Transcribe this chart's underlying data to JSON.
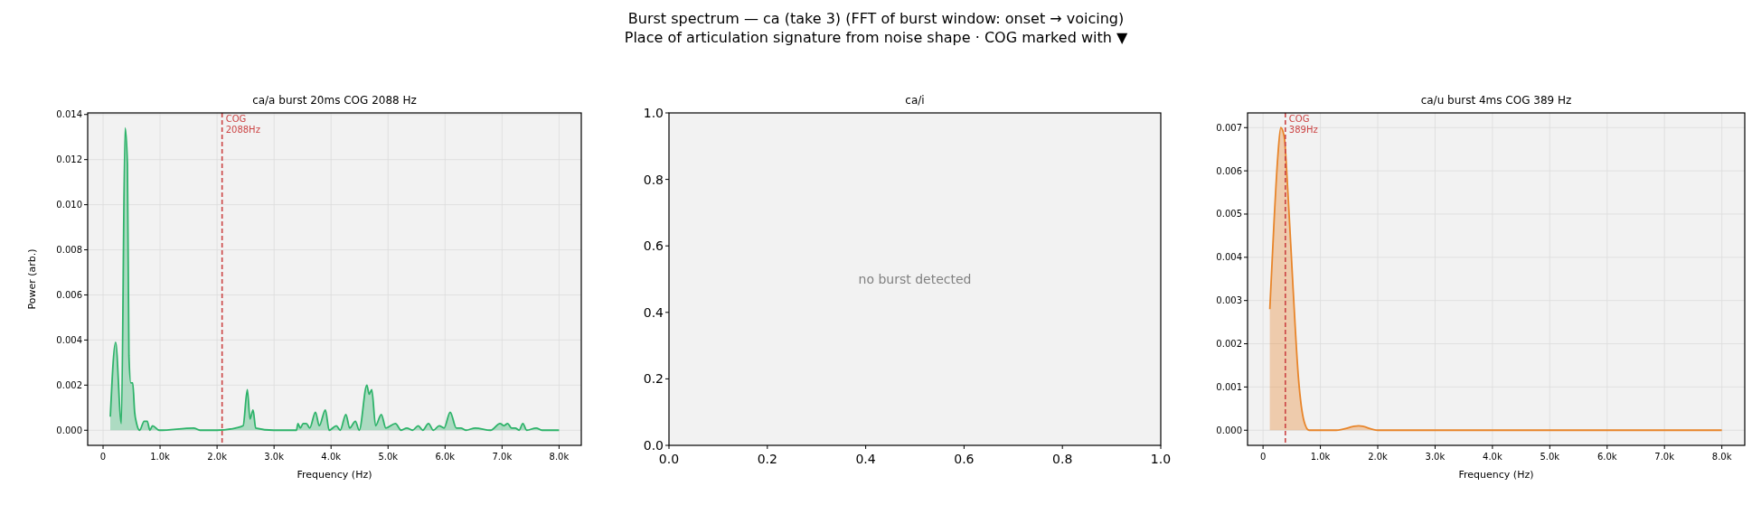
{
  "chart_data": [
    {
      "type": "other",
      "title": "Burst spectrum — ca (take 3)  (FFT of burst window: onset → voicing)",
      "subtitle": "Place of articulation signature from noise shape · COG marked with ▼"
    },
    {
      "type": "area",
      "title": "ca/a  burst 20ms  COG 2088 Hz",
      "xlabel": "Frequency (Hz)",
      "ylabel": "Power (arb.)",
      "grid": true,
      "xlim": [
        -270,
        8390
      ],
      "ylim": [
        -0.00067,
        0.01407
      ],
      "xticks": [
        0,
        {
          "value": 1000,
          "label": "1.0k"
        },
        {
          "value": 2000,
          "label": "2.0k"
        },
        {
          "value": 3000,
          "label": "3.0k"
        },
        {
          "value": 4000,
          "label": "4.0k"
        },
        {
          "value": 5000,
          "label": "5.0k"
        },
        {
          "value": 6000,
          "label": "6.0k"
        },
        {
          "value": 7000,
          "label": "7.0k"
        },
        {
          "value": 8000,
          "label": "8.0k"
        }
      ],
      "yticks": [
        {
          "value": 0,
          "label": "0.000"
        },
        {
          "value": 0.002,
          "label": "0.002"
        },
        {
          "value": 0.004,
          "label": "0.004"
        },
        {
          "value": 0.006,
          "label": "0.006"
        },
        {
          "value": 0.008,
          "label": "0.008"
        },
        {
          "value": 0.01,
          "label": "0.010"
        },
        {
          "value": 0.012,
          "label": "0.012"
        },
        {
          "value": 0.014,
          "label": "0.014"
        }
      ],
      "ref_lines": [
        {
          "axis": "x",
          "value": 2088,
          "label": "COG\n2088Hz",
          "color": "#cc4444",
          "line_style": "dashed"
        }
      ],
      "series": [
        {
          "color": "#2eb36a",
          "x": [
            127,
            220,
            320,
            387,
            427,
            454,
            487,
            520,
            554,
            588,
            641,
            721,
            775,
            821,
            868,
            988,
            1590,
            1700,
            2000,
            2324,
            2457,
            2531,
            2578,
            2631,
            2678,
            2992,
            3392,
            3419,
            3459,
            3512,
            3566,
            3626,
            3726,
            3793,
            3900,
            3967,
            4093,
            4160,
            4260,
            4327,
            4427,
            4494,
            4628,
            4668,
            4714,
            4781,
            4881,
            4961,
            5129,
            5229,
            5329,
            5429,
            5529,
            5609,
            5709,
            5796,
            5897,
            5983,
            6090,
            6197,
            6277,
            6364,
            6531,
            6798,
            6965,
            7032,
            7098,
            7165,
            7232,
            7299,
            7365,
            7432,
            7599,
            7699,
            8000
          ],
          "values": [
            0.0006,
            0.0039,
            0.0003,
            0.0134,
            0.0118,
            0.0033,
            0.0021,
            0.0021,
            0.0008,
            0.0003,
            0,
            0.0004,
            0.0004,
            0,
            0.0002,
            0,
            0.0001,
            0,
            0,
            0.0001,
            0.0002,
            0.0018,
            0.0005,
            0.0009,
            0.0001,
            0,
            0,
            0.0003,
            0.0001,
            0.0003,
            0.0003,
            0.0001,
            0.0008,
            0.0002,
            0.0009,
            0,
            0.0002,
            0,
            0.0007,
            0.0001,
            0.0004,
            0,
            0.002,
            0.0016,
            0.0018,
            0.0002,
            0.0007,
            0.0001,
            0.0003,
            0,
            0.0001,
            0,
            0.0002,
            0,
            0.0003,
            0,
            0.0002,
            0.0001,
            0.0008,
            0.0001,
            0.0001,
            0,
            0.0001,
            0,
            0.0003,
            0.0002,
            0.0003,
            0.0001,
            0.0001,
            0,
            0.0003,
            0,
            0.0001,
            0,
            0
          ]
        }
      ]
    },
    {
      "type": "line",
      "title": "ca/i",
      "xlim": [
        0,
        1
      ],
      "ylim": [
        0,
        1
      ],
      "xticks": [
        {
          "value": 0,
          "label": "0.0"
        },
        {
          "value": 0.2,
          "label": "0.2"
        },
        {
          "value": 0.4,
          "label": "0.4"
        },
        {
          "value": 0.6,
          "label": "0.6"
        },
        {
          "value": 0.8,
          "label": "0.8"
        },
        {
          "value": 1,
          "label": "1.0"
        }
      ],
      "yticks": [
        {
          "value": 0,
          "label": "0.0"
        },
        {
          "value": 0.2,
          "label": "0.2"
        },
        {
          "value": 0.4,
          "label": "0.4"
        },
        {
          "value": 0.6,
          "label": "0.6"
        },
        {
          "value": 0.8,
          "label": "0.8"
        },
        {
          "value": 1,
          "label": "1.0"
        }
      ],
      "annotations": [
        "no burst detected"
      ]
    },
    {
      "type": "area",
      "title": "ca/u  burst 4ms  COG 389 Hz",
      "xlabel": "Frequency (Hz)",
      "grid": true,
      "xlim": [
        -270,
        8400
      ],
      "ylim": [
        -0.00035,
        0.00734
      ],
      "xticks": [
        0,
        {
          "value": 1000,
          "label": "1.0k"
        },
        {
          "value": 2000,
          "label": "2.0k"
        },
        {
          "value": 3000,
          "label": "3.0k"
        },
        {
          "value": 4000,
          "label": "4.0k"
        },
        {
          "value": 5000,
          "label": "5.0k"
        },
        {
          "value": 6000,
          "label": "6.0k"
        },
        {
          "value": 7000,
          "label": "7.0k"
        },
        {
          "value": 8000,
          "label": "8.0k"
        }
      ],
      "yticks": [
        {
          "value": 0,
          "label": "0.000"
        },
        {
          "value": 0.001,
          "label": "0.001"
        },
        {
          "value": 0.002,
          "label": "0.002"
        },
        {
          "value": 0.003,
          "label": "0.003"
        },
        {
          "value": 0.004,
          "label": "0.004"
        },
        {
          "value": 0.005,
          "label": "0.005"
        },
        {
          "value": 0.006,
          "label": "0.006"
        },
        {
          "value": 0.007,
          "label": "0.007"
        }
      ],
      "ref_lines": [
        {
          "axis": "x",
          "value": 389,
          "label": "COG\n389Hz",
          "color": "#cc4444",
          "line_style": "dashed"
        }
      ],
      "series": [
        {
          "color": "#e8852a",
          "x": [
            118,
            191,
            256,
            309,
            368,
            434,
            519,
            618,
            717,
            802,
            1078,
            1275,
            1670,
            1999,
            2919,
            3116,
            3511,
            8000
          ],
          "values": [
            0.0028,
            0.0048,
            0.0063,
            0.007,
            0.0068,
            0.0055,
            0.0034,
            0.0012,
            0.0002,
            0,
            0,
            0,
            0.0001,
            0,
            0,
            0,
            0,
            0
          ]
        }
      ]
    }
  ]
}
